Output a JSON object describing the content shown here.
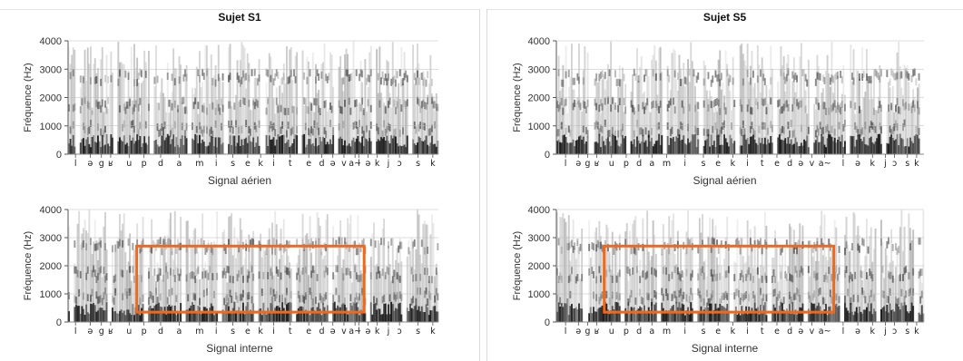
{
  "chart_data": [
    {
      "type": "heatmap",
      "panel_title": "Sujet S1",
      "subplots": [
        {
          "signal": "Signal aérien",
          "xlabel": "Signal aérien",
          "ylabel": "Fréquence (Hz)",
          "ylim": [
            0,
            4000
          ],
          "yticks": [
            "0",
            "1000",
            "2000",
            "3000",
            "4000"
          ],
          "grid": true,
          "phonemes": [
            "l",
            "ə",
            "g",
            "ʁ",
            "u",
            "p",
            "d",
            "a",
            "m",
            "i",
            "s",
            "e",
            "k",
            "i",
            "t",
            "e",
            "d",
            "ə",
            "v",
            "a~",
            "l",
            "ə",
            "k",
            "j",
            "ɔ",
            "s",
            "k"
          ],
          "highlight_box": null
        },
        {
          "signal": "Signal interne",
          "xlabel": "Signal interne",
          "ylabel": "Fréquence (Hz)",
          "ylim": [
            0,
            4000
          ],
          "yticks": [
            "0",
            "1000",
            "2000",
            "3000",
            "4000"
          ],
          "grid": true,
          "phonemes": [
            "l",
            "ə",
            "g",
            "ʁ",
            "u",
            "p",
            "d",
            "a",
            "m",
            "i",
            "s",
            "e",
            "k",
            "i",
            "t",
            "e",
            "d",
            "ə",
            "v",
            "a~",
            "l",
            "ə",
            "k",
            "j",
            "ɔ",
            "s",
            "k"
          ],
          "highlight_box": {
            "from_phoneme": "p",
            "to_phoneme": "a~",
            "freq_range_hz": [
              350,
              2700
            ],
            "color": "#f0681c"
          }
        }
      ]
    },
    {
      "type": "heatmap",
      "panel_title": "Sujet S5",
      "subplots": [
        {
          "signal": "Signal aérien",
          "xlabel": "Signal aérien",
          "ylabel": "Fréquence (Hz)",
          "ylim": [
            0,
            4000
          ],
          "yticks": [
            "0",
            "1000",
            "2000",
            "3000",
            "4000"
          ],
          "grid": true,
          "phonemes": [
            "l",
            "ə",
            "g",
            "ʁ",
            "u",
            "p",
            "d",
            "a",
            "m",
            "i",
            "s",
            "e",
            "k",
            "i",
            "t",
            "e",
            "d",
            "ə",
            "v",
            "a~",
            "l",
            "ə",
            "k",
            "j",
            "ɔ",
            "s",
            "k"
          ],
          "highlight_box": null
        },
        {
          "signal": "Signal interne",
          "xlabel": "Signal interne",
          "ylabel": "Fréquence (Hz)",
          "ylim": [
            0,
            4000
          ],
          "yticks": [
            "0",
            "1000",
            "2000",
            "3000",
            "4000"
          ],
          "grid": true,
          "phonemes": [
            "l",
            "ə",
            "g",
            "ʁ",
            "u",
            "p",
            "d",
            "a",
            "m",
            "i",
            "s",
            "e",
            "k",
            "i",
            "t",
            "e",
            "d",
            "ə",
            "v",
            "a~",
            "l",
            "ə",
            "k",
            "j",
            "ɔ",
            "s",
            "k"
          ],
          "highlight_box": {
            "from_phoneme": "u",
            "to_phoneme": "a~",
            "freq_range_hz": [
              350,
              2700
            ],
            "color": "#f0681c"
          }
        }
      ]
    }
  ]
}
